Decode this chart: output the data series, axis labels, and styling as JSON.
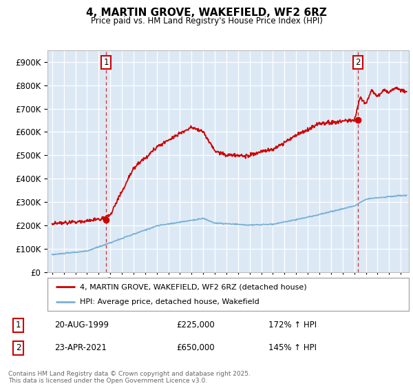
{
  "title": "4, MARTIN GROVE, WAKEFIELD, WF2 6RZ",
  "subtitle": "Price paid vs. HM Land Registry's House Price Index (HPI)",
  "legend_label_red": "4, MARTIN GROVE, WAKEFIELD, WF2 6RZ (detached house)",
  "legend_label_blue": "HPI: Average price, detached house, Wakefield",
  "annotation1_date": "20-AUG-1999",
  "annotation1_price": "£225,000",
  "annotation1_hpi": "172% ↑ HPI",
  "annotation2_date": "23-APR-2021",
  "annotation2_price": "£650,000",
  "annotation2_hpi": "145% ↑ HPI",
  "footer": "Contains HM Land Registry data © Crown copyright and database right 2025.\nThis data is licensed under the Open Government Licence v3.0.",
  "ylim": [
    0,
    950000
  ],
  "yticks": [
    0,
    100000,
    200000,
    300000,
    400000,
    500000,
    600000,
    700000,
    800000,
    900000
  ],
  "plot_bg_color": "#dce9f5",
  "grid_color": "#ffffff",
  "red_color": "#cc0000",
  "blue_color": "#7ab0d4",
  "sale1_x": 1999.64,
  "sale1_y": 225000,
  "sale2_x": 2021.31,
  "sale2_y": 650000,
  "xlim_left": 1994.6,
  "xlim_right": 2025.7
}
